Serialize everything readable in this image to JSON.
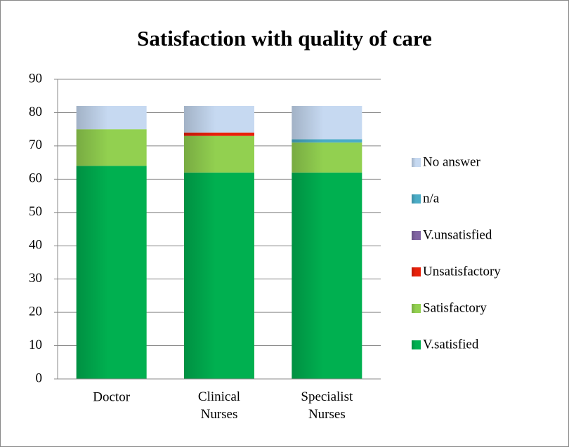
{
  "chart_data": {
    "type": "stacked_bar",
    "title": "Satisfaction with quality of care",
    "categories": [
      "Doctor",
      "Clinical Nurses",
      "Specialist Nurses"
    ],
    "series": [
      {
        "name": "V.satisfied",
        "color": "#00b050",
        "values": [
          64,
          62,
          62
        ]
      },
      {
        "name": "Satisfactory",
        "color": "#92d050",
        "values": [
          11,
          11,
          9
        ]
      },
      {
        "name": "Unsatisfactory",
        "color": "#e8200a",
        "values": [
          0,
          1,
          0
        ]
      },
      {
        "name": "V.unsatisfied",
        "color": "#8064a2",
        "values": [
          0,
          0,
          0
        ]
      },
      {
        "name": "n/a",
        "color": "#4bacc6",
        "values": [
          0,
          0,
          1
        ]
      },
      {
        "name": "No answer",
        "color": "#c6d9f1",
        "values": [
          7,
          8,
          10
        ]
      }
    ],
    "ylim": [
      0,
      90
    ],
    "yticks": [
      0,
      10,
      20,
      30,
      40,
      50,
      60,
      70,
      80,
      90
    ],
    "grid": true,
    "legend": "right"
  }
}
